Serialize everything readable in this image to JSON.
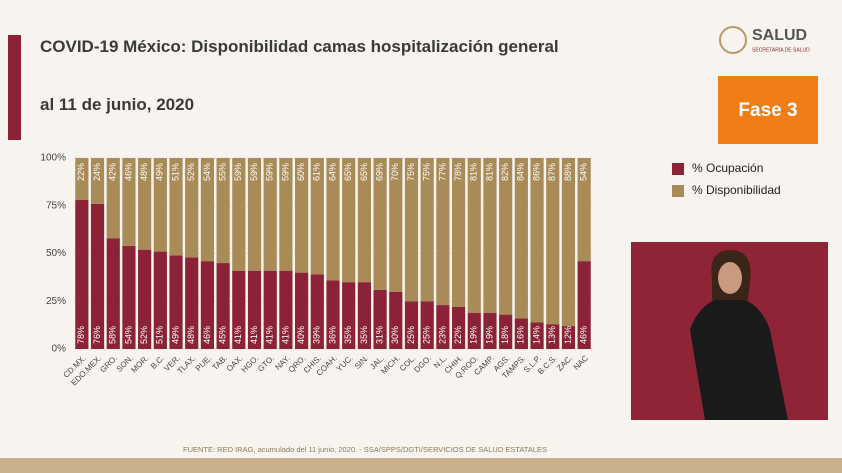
{
  "chart_data": {
    "type": "stacked_bar",
    "title": "COVID-19 México: Disponibilidad camas hospitalización general",
    "subtitle": "al 11 de junio, 2020",
    "categories": [
      "CD.MX.",
      "EDO.MEX.",
      "GRO.",
      "SON.",
      "MOR.",
      "B.C.",
      "VER.",
      "TLAX.",
      "PUE.",
      "TAB.",
      "OAX.",
      "HGO.",
      "GTO.",
      "NAY.",
      "QRO.",
      "CHIS.",
      "COAH.",
      "YUC.",
      "SIN.",
      "JAL.",
      "MICH.",
      "COL.",
      "DGO.",
      "N.L.",
      "CHIH.",
      "Q.ROO.",
      "CAMP.",
      "AGS.",
      "TAMPS.",
      "S.L.P.",
      "B.C.S.",
      "ZAC.",
      "NAC"
    ],
    "series": [
      {
        "name": "% Ocupación",
        "color": "#8b2235",
        "values": [
          78,
          76,
          58,
          54,
          52,
          51,
          49,
          48,
          46,
          45,
          41,
          41,
          41,
          41,
          40,
          39,
          36,
          35,
          35,
          31,
          30,
          25,
          25,
          23,
          22,
          19,
          19,
          18,
          16,
          14,
          13,
          12,
          46
        ],
        "value_labels": [
          "78%",
          "76%",
          "58%",
          "54%",
          "52%",
          "51%",
          "49%",
          "48%",
          "46%",
          "45%",
          "41%",
          "41%",
          "41%",
          "41%",
          "40%",
          "39%",
          "36%",
          "35%",
          "35%",
          "31%",
          "30%",
          "25%",
          "25%",
          "23%",
          "22%",
          "19%",
          "19%",
          "18%",
          "16%",
          "14%",
          "13%",
          "12%",
          "46%"
        ]
      },
      {
        "name": "% Disponibilidad",
        "color": "#a98b58",
        "values": [
          22,
          24,
          42,
          46,
          48,
          49,
          51,
          52,
          54,
          55,
          59,
          59,
          59,
          59,
          60,
          61,
          64,
          65,
          65,
          69,
          70,
          75,
          75,
          77,
          78,
          81,
          81,
          82,
          84,
          86,
          87,
          88,
          54
        ],
        "value_labels": [
          "22%",
          "24%",
          "42%",
          "46%",
          "48%",
          "49%",
          "51%",
          "52%",
          "54%",
          "55%",
          "59%",
          "59%",
          "59%",
          "59%",
          "60%",
          "61%",
          "64%",
          "65%",
          "65%",
          "69%",
          "70%",
          "75%",
          "75%",
          "77%",
          "78%",
          "81%",
          "81%",
          "82%",
          "84%",
          "86%",
          "87%",
          "88%",
          "54%"
        ]
      }
    ],
    "ylim": [
      0,
      100
    ],
    "yticks": [
      {
        "value": 0,
        "label": "0%"
      },
      {
        "value": 25,
        "label": "25%"
      },
      {
        "value": 50,
        "label": "50%"
      },
      {
        "value": 75,
        "label": "75%"
      },
      {
        "value": 100,
        "label": "100%"
      }
    ],
    "grid": true,
    "legend": "right"
  },
  "logo": {
    "name": "SALUD",
    "subtitle": "SECRETARÍA DE SALUD"
  },
  "badge": "Fase 3",
  "footer": "FUENTE: RED IRAG, acumulado del 11  junio, 2020. - SSA/SPPS/DGTI/SERVICIOS DE SALUD ESTATALES"
}
